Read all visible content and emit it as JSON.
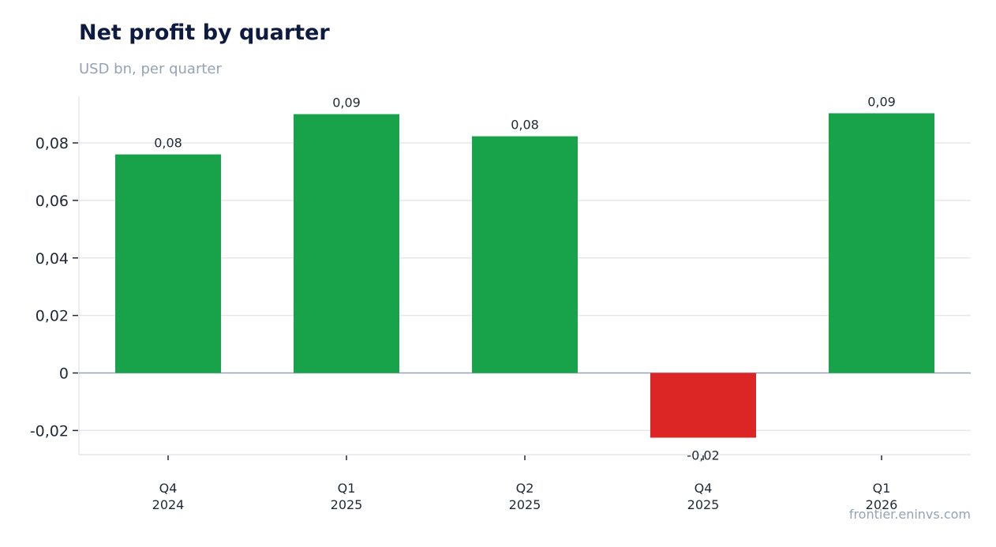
{
  "header": {
    "title": "Net profit by quarter",
    "subtitle": "USD bn, per quarter"
  },
  "footer": {
    "source": "frontier.eninvs.com"
  },
  "colors": {
    "positive": "#18a34a",
    "negative": "#dc2626",
    "grid": "#e5e7eb",
    "zero_line": "#94a3b8"
  },
  "chart_data": {
    "type": "bar",
    "title": "Net profit by quarter",
    "subtitle": "USD bn, per quarter",
    "categories": [
      [
        "Q4",
        "2024"
      ],
      [
        "Q1",
        "2025"
      ],
      [
        "Q2",
        "2025"
      ],
      [
        "Q4",
        "2025"
      ],
      [
        "Q1",
        "2026"
      ]
    ],
    "values": [
      0.076,
      0.09,
      0.0823,
      -0.0225,
      0.0903
    ],
    "data_labels": [
      "0,08",
      "0,09",
      "0,08",
      "-0,02",
      "0,09"
    ],
    "yticks": [
      -0.02,
      0,
      0.02,
      0.04,
      0.06,
      0.08
    ],
    "ytick_labels": [
      "-0,02",
      "0",
      "0,02",
      "0,04",
      "0,06",
      "0,08"
    ],
    "ylim": [
      -0.0284,
      0.0962
    ],
    "grid": true,
    "legend": "none"
  }
}
